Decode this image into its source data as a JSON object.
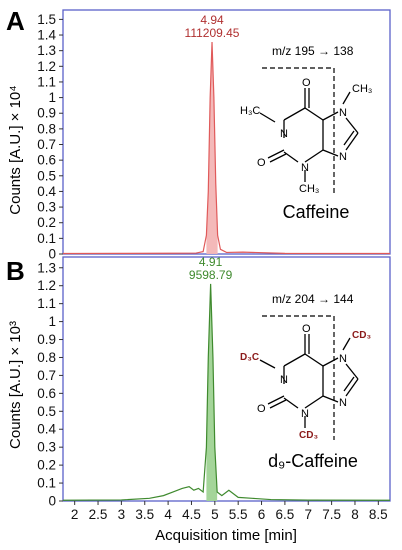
{
  "chart_data": [
    {
      "type": "line",
      "panel_label": "A",
      "xlabel": "",
      "ylabel": "Counts [A.U.] × 10⁴",
      "xlim": [
        1.75,
        8.75
      ],
      "ylim": [
        0,
        1.56
      ],
      "y_ticks": [
        "0",
        "0.1",
        "0.2",
        "0.3",
        "0.4",
        "0.5",
        "0.6",
        "0.7",
        "0.8",
        "0.9",
        "1",
        "1.1",
        "1.2",
        "1.3",
        "1.4",
        "1.5"
      ],
      "series": [
        {
          "color": "#e05a5a",
          "fill": "#f3b5b5",
          "x": [
            1.75,
            2.0,
            3.0,
            4.0,
            4.6,
            4.75,
            4.82,
            4.86,
            4.9,
            4.94,
            4.98,
            5.02,
            5.06,
            5.12,
            5.25,
            5.6,
            6.5,
            7.5,
            8.75
          ],
          "y": [
            0.003,
            0.003,
            0.004,
            0.005,
            0.006,
            0.015,
            0.12,
            0.4,
            1.0,
            1.355,
            1.0,
            0.45,
            0.12,
            0.03,
            0.01,
            0.012,
            0.004,
            0.003,
            0.003
          ]
        }
      ],
      "peak_label": {
        "x": 4.94,
        "time": "4.94",
        "area": "111209.45",
        "color": "#b03030"
      },
      "transition": "m/z 195 → 138",
      "compound": "Caffeine",
      "atoms": {
        "n1": "N",
        "n3": "N",
        "n7": "N",
        "n9": "N",
        "o1": "O",
        "o2": "O",
        "me_n1": "H₃C",
        "me_n3": "CH₃",
        "me_n7": "CH₃"
      }
    },
    {
      "type": "line",
      "panel_label": "B",
      "xlabel": "Acquisition time [min]",
      "ylabel": "Counts [A.U.] × 10³",
      "xlim": [
        1.75,
        8.75
      ],
      "ylim": [
        0,
        1.36
      ],
      "x_ticks": [
        "2",
        "2.5",
        "3",
        "3.5",
        "4",
        "4.5",
        "5",
        "5.5",
        "6",
        "6.5",
        "7",
        "7.5",
        "8",
        "8.5"
      ],
      "y_ticks": [
        "0",
        "0.1",
        "0.2",
        "0.3",
        "0.4",
        "0.5",
        "0.6",
        "0.7",
        "0.8",
        "0.9",
        "1",
        "1.1",
        "1.2",
        "1.3"
      ],
      "series": [
        {
          "color": "#3f8a2e",
          "fill": "#9fd393",
          "x": [
            1.75,
            3.0,
            3.6,
            3.9,
            4.1,
            4.3,
            4.45,
            4.55,
            4.65,
            4.75,
            4.82,
            4.86,
            4.91,
            4.96,
            5.0,
            5.05,
            5.15,
            5.3,
            5.5,
            5.8,
            6.2,
            7.0,
            8.75
          ],
          "y": [
            0.004,
            0.006,
            0.015,
            0.03,
            0.05,
            0.07,
            0.08,
            0.06,
            0.07,
            0.05,
            0.3,
            0.8,
            1.21,
            0.8,
            0.3,
            0.05,
            0.03,
            0.06,
            0.02,
            0.015,
            0.008,
            0.005,
            0.004
          ]
        }
      ],
      "peak_label": {
        "x": 4.91,
        "time": "4.91",
        "area": "9598.79",
        "color": "#3f8a2e"
      },
      "transition": "m/z 204 → 144",
      "compound": "d₉-Caffeine",
      "atoms": {
        "n1": "N",
        "n3": "N",
        "n7": "N",
        "n9": "N",
        "o1": "O",
        "o2": "O",
        "me_n1": "D₃C",
        "me_n3": "CD₃",
        "me_n7": "CD₃"
      }
    }
  ]
}
